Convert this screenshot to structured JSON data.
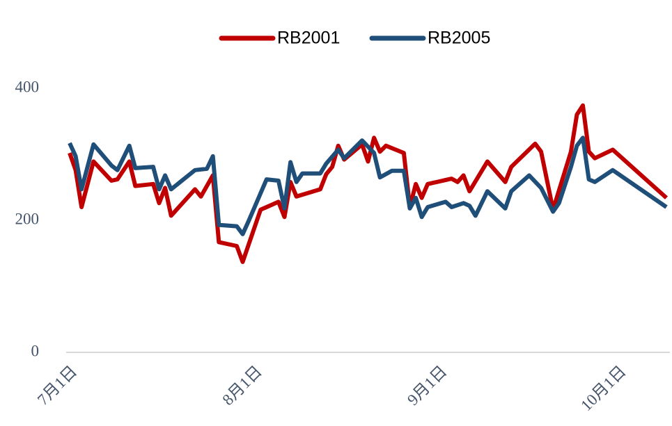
{
  "chart_data": {
    "type": "line",
    "series": [
      {
        "name": "RB2001",
        "color": "#c00000",
        "x": [
          0,
          1,
          2,
          4,
          7,
          8,
          10,
          11,
          14,
          15,
          16,
          17,
          21,
          22,
          24,
          25,
          28,
          29,
          32,
          35,
          36,
          37,
          38,
          42,
          43,
          44,
          45,
          46,
          49,
          50,
          51,
          52,
          53,
          56,
          57,
          58,
          59,
          60,
          64,
          65,
          66,
          67,
          70,
          73,
          74,
          78,
          79,
          81,
          84,
          85,
          86,
          87,
          88,
          91,
          100
        ],
        "values": [
          302,
          276,
          220,
          289,
          260,
          262,
          289,
          252,
          255,
          226,
          249,
          207,
          247,
          236,
          268,
          167,
          161,
          137,
          216,
          228,
          205,
          258,
          236,
          247,
          270,
          281,
          313,
          292,
          315,
          289,
          325,
          304,
          313,
          302,
          220,
          255,
          234,
          255,
          263,
          258,
          268,
          244,
          289,
          258,
          281,
          316,
          304,
          216,
          304,
          360,
          374,
          304,
          294,
          307,
          234
        ]
      },
      {
        "name": "RB2005",
        "color": "#1f4e79",
        "x": [
          0,
          1,
          2,
          4,
          7,
          8,
          10,
          11,
          14,
          15,
          16,
          17,
          21,
          23,
          24,
          25,
          28,
          29,
          30,
          33,
          35,
          36,
          37,
          38,
          39,
          42,
          43,
          45,
          46,
          49,
          51,
          52,
          54,
          56,
          57,
          58,
          59,
          60,
          63,
          64,
          66,
          67,
          68,
          70,
          73,
          74,
          77,
          79,
          81,
          82,
          84,
          85,
          86,
          87,
          88,
          91,
          100
        ],
        "values": [
          317,
          297,
          247,
          315,
          283,
          276,
          313,
          279,
          281,
          247,
          268,
          247,
          276,
          278,
          297,
          193,
          191,
          179,
          199,
          262,
          260,
          218,
          288,
          258,
          271,
          271,
          286,
          307,
          294,
          321,
          302,
          265,
          275,
          275,
          218,
          234,
          205,
          220,
          228,
          220,
          226,
          222,
          207,
          244,
          218,
          244,
          268,
          249,
          213,
          226,
          281,
          313,
          325,
          262,
          258,
          276,
          220
        ]
      }
    ],
    "xlim": [
      0,
      100
    ],
    "xticks": [
      {
        "value": 0,
        "label": "7月1日"
      },
      {
        "value": 31,
        "label": "8月1日"
      },
      {
        "value": 62,
        "label": "9月1日"
      },
      {
        "value": 92,
        "label": "10月1日"
      }
    ],
    "ylim": [
      0,
      400
    ],
    "yticks": [
      0,
      200,
      400
    ],
    "legend": "top"
  }
}
